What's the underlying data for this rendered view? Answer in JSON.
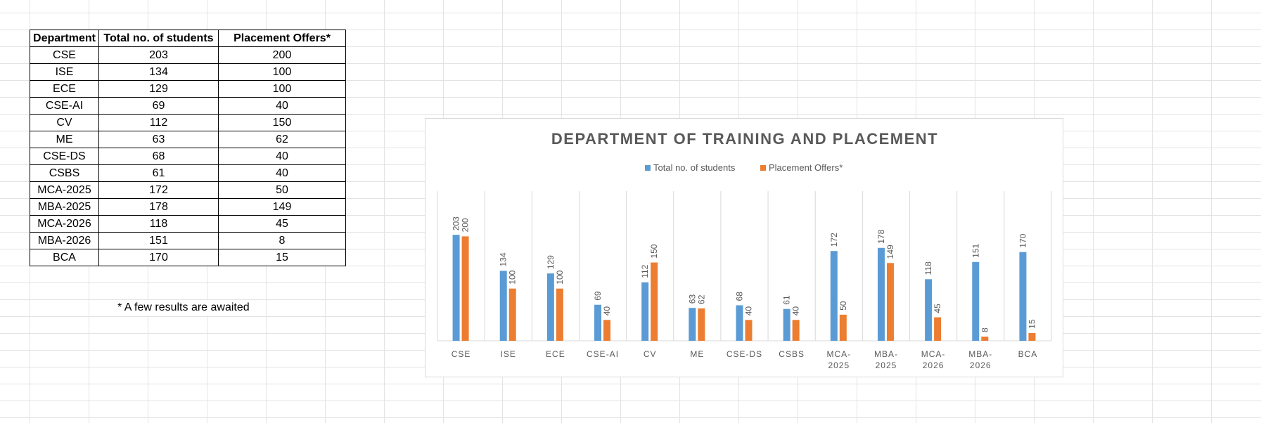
{
  "table": {
    "headers": [
      "Department",
      "Total no. of students",
      "Placement Offers*"
    ],
    "rows": [
      [
        "CSE",
        "203",
        "200"
      ],
      [
        "ISE",
        "134",
        "100"
      ],
      [
        "ECE",
        "129",
        "100"
      ],
      [
        "CSE-AI",
        "69",
        "40"
      ],
      [
        "CV",
        "112",
        "150"
      ],
      [
        "ME",
        "63",
        "62"
      ],
      [
        "CSE-DS",
        "68",
        "40"
      ],
      [
        "CSBS",
        "61",
        "40"
      ],
      [
        "MCA-2025",
        "172",
        "50"
      ],
      [
        "MBA-2025",
        "178",
        "149"
      ],
      [
        "MCA-2026",
        "118",
        "45"
      ],
      [
        "MBA-2026",
        "151",
        "8"
      ],
      [
        "BCA",
        "170",
        "15"
      ]
    ]
  },
  "footnote": "* A few results are awaited",
  "chart_data": {
    "type": "bar",
    "title": "DEPARTMENT OF TRAINING AND PLACEMENT",
    "categories": [
      "CSE",
      "ISE",
      "ECE",
      "CSE-AI",
      "CV",
      "ME",
      "CSE-DS",
      "CSBS",
      "MCA-2025",
      "MBA-2025",
      "MCA-2026",
      "MBA-2026",
      "BCA"
    ],
    "series": [
      {
        "name": "Total no. of students",
        "values": [
          203,
          134,
          129,
          69,
          112,
          63,
          68,
          61,
          172,
          178,
          118,
          151,
          170
        ],
        "color": "#5b9bd5"
      },
      {
        "name": "Placement Offers*",
        "values": [
          200,
          100,
          100,
          40,
          150,
          62,
          40,
          40,
          50,
          149,
          45,
          8,
          15
        ],
        "color": "#ed7d31"
      }
    ],
    "ylim": [
      0,
      250
    ],
    "legend": "top",
    "grid": "vertical category separators",
    "data_labels": "rotated, above bars"
  }
}
